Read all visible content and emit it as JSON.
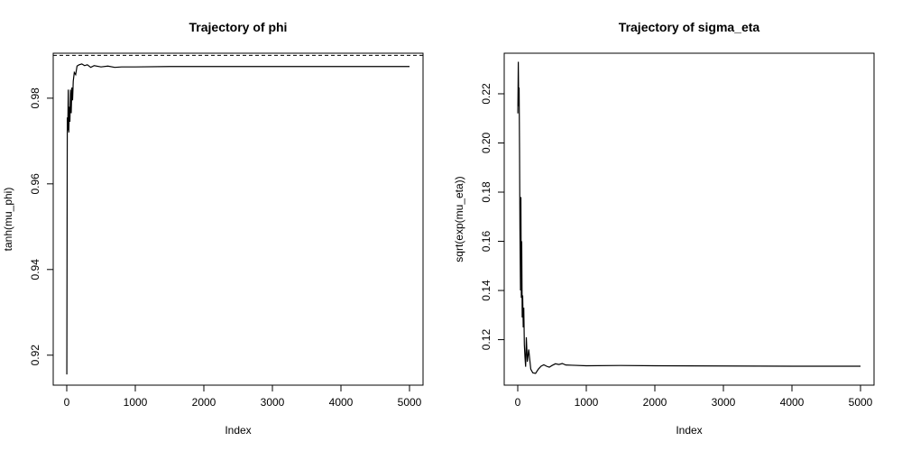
{
  "chart_data": [
    {
      "type": "line",
      "title": "Trajectory of phi",
      "xlabel": "Index",
      "ylabel": "tanh(mu_phi)",
      "xlim": [
        0,
        5000
      ],
      "ylim": [
        0.913,
        0.9905
      ],
      "xticks": [
        0,
        1000,
        2000,
        3000,
        4000,
        5000
      ],
      "yticks": [
        0.92,
        0.94,
        0.96,
        0.98
      ],
      "ytick_labels": [
        "0.92",
        "0.94",
        "0.96",
        "0.98"
      ],
      "reference_line": 0.99,
      "grid": false,
      "series": [
        {
          "x": [
            1,
            8,
            15,
            22,
            30,
            38,
            46,
            55,
            65,
            75,
            85,
            95,
            110,
            130,
            150,
            180,
            220,
            260,
            300,
            350,
            400,
            500,
            600,
            700,
            800,
            1000,
            1500,
            2000,
            3000,
            4000,
            5000
          ],
          "y": [
            0.9155,
            0.9755,
            0.9725,
            0.982,
            0.972,
            0.978,
            0.9745,
            0.982,
            0.9765,
            0.9825,
            0.9795,
            0.984,
            0.986,
            0.9855,
            0.9875,
            0.9878,
            0.988,
            0.9876,
            0.9878,
            0.9872,
            0.9876,
            0.9873,
            0.9875,
            0.9872,
            0.9873,
            0.9873,
            0.9874,
            0.9874,
            0.9874,
            0.9874,
            0.9874
          ]
        }
      ]
    },
    {
      "type": "line",
      "title": "Trajectory of sigma_eta",
      "xlabel": "Index",
      "ylabel": "sqrt(exp(mu_eta))",
      "xlim": [
        0,
        5000
      ],
      "ylim": [
        0.1015,
        0.2365
      ],
      "xticks": [
        0,
        1000,
        2000,
        3000,
        4000,
        5000
      ],
      "yticks": [
        0.12,
        0.14,
        0.16,
        0.18,
        0.2,
        0.22
      ],
      "ytick_labels": [
        "0.12",
        "0.14",
        "0.16",
        "0.18",
        "0.20",
        "0.22"
      ],
      "grid": false,
      "series": [
        {
          "x": [
            1,
            8,
            15,
            20,
            26,
            32,
            40,
            46,
            52,
            58,
            65,
            72,
            80,
            88,
            96,
            105,
            115,
            125,
            140,
            160,
            190,
            220,
            260,
            300,
            340,
            380,
            420,
            460,
            500,
            550,
            600,
            650,
            700,
            800,
            1000,
            1500,
            2000,
            3000,
            4000,
            5000
          ],
          "y": [
            0.212,
            0.233,
            0.215,
            0.2225,
            0.198,
            0.165,
            0.14,
            0.178,
            0.137,
            0.16,
            0.129,
            0.138,
            0.125,
            0.133,
            0.118,
            0.113,
            0.109,
            0.121,
            0.111,
            0.116,
            0.108,
            0.1065,
            0.1063,
            0.108,
            0.1092,
            0.1098,
            0.1092,
            0.1088,
            0.1095,
            0.1102,
            0.1099,
            0.1103,
            0.1097,
            0.1096,
            0.1094,
            0.1095,
            0.1094,
            0.1093,
            0.1092,
            0.1092
          ]
        }
      ]
    }
  ]
}
